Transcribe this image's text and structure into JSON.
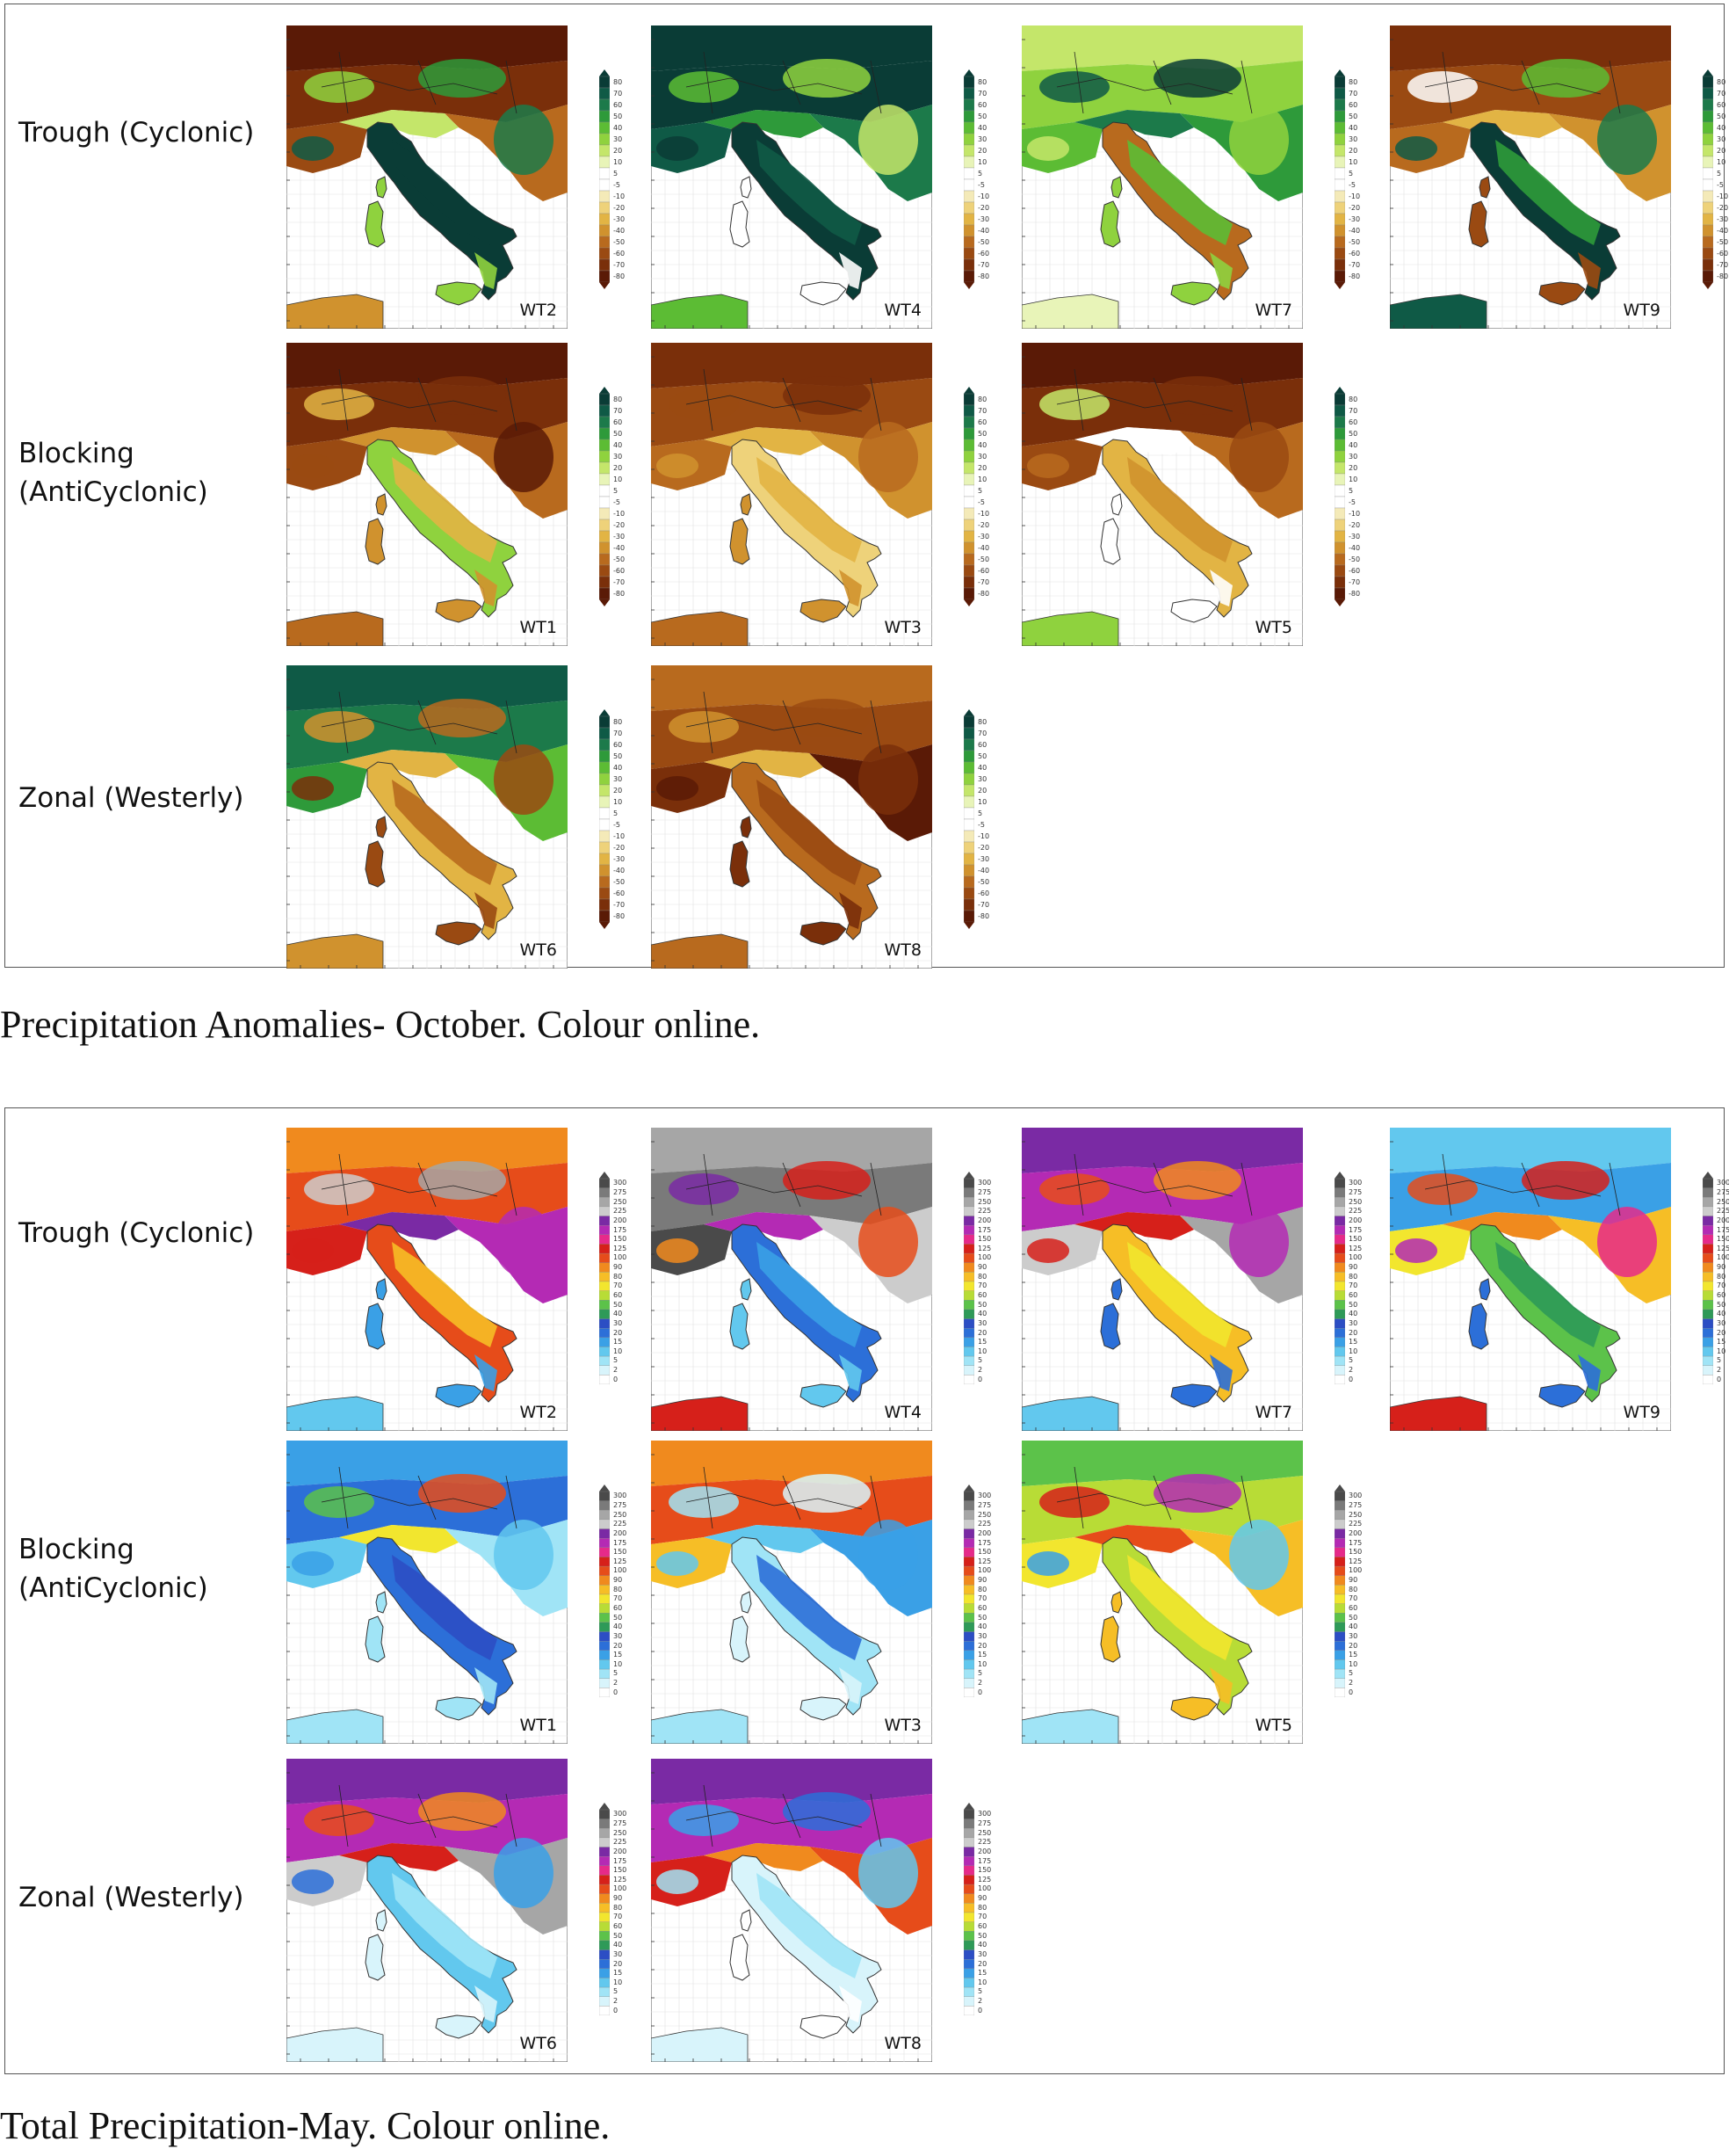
{
  "figures": [
    {
      "id": "anom",
      "caption": "Precipitation Anomalies- October. Colour online.",
      "colors": [
        "#5a1a06",
        "#7a2f0a",
        "#9a4a12",
        "#b86a1e",
        "#d0922e",
        "#e2b444",
        "#eed27a",
        "#f4eab8",
        "#ffffff",
        "#ffffff",
        "#e8f4b8",
        "#c4e66a",
        "#8fd23e",
        "#5cbc34",
        "#2e9a3a",
        "#1c7a4a",
        "#0f5a46",
        "#0a3c36"
      ],
      "ticks": [
        "80",
        "70",
        "60",
        "50",
        "40",
        "30",
        "20",
        "10",
        "5",
        "-5",
        "-10",
        "-20",
        "-30",
        "-40",
        "-50",
        "-60",
        "-70",
        "-80"
      ],
      "rows": [
        {
          "label": "Trough (Cyclonic)",
          "maps": [
            {
              "wt": "WT2",
              "palette": [
                0,
                1,
                2,
                3,
                11,
                12,
                14,
                15,
                16,
                17,
                17,
                12,
                4
              ]
            },
            {
              "wt": "WT4",
              "palette": [
                17,
                17,
                16,
                15,
                14,
                13,
                12,
                11,
                17,
                17,
                16,
                9,
                13
              ]
            },
            {
              "wt": "WT7",
              "palette": [
                11,
                12,
                13,
                14,
                15,
                16,
                17,
                12,
                11,
                3,
                13,
                12,
                10
              ]
            },
            {
              "wt": "WT9",
              "palette": [
                1,
                2,
                3,
                4,
                5,
                9,
                13,
                15,
                16,
                17,
                14,
                2,
                16
              ]
            }
          ]
        },
        {
          "label": "Blocking (AntiCyclonic)",
          "maps": [
            {
              "wt": "WT1",
              "palette": [
                0,
                1,
                2,
                3,
                4,
                5,
                1,
                0,
                2,
                12,
                5,
                4,
                3
              ]
            },
            {
              "wt": "WT3",
              "palette": [
                1,
                2,
                3,
                4,
                5,
                2,
                1,
                3,
                4,
                6,
                5,
                4,
                3
              ]
            },
            {
              "wt": "WT5",
              "palette": [
                0,
                1,
                2,
                3,
                9,
                11,
                1,
                2,
                3,
                5,
                4,
                9,
                12
              ]
            }
          ]
        },
        {
          "label": "Zonal (Westerly)",
          "maps": [
            {
              "wt": "WT6",
              "palette": [
                16,
                15,
                14,
                13,
                5,
                4,
                3,
                2,
                1,
                5,
                3,
                2,
                4
              ]
            },
            {
              "wt": "WT8",
              "palette": [
                3,
                2,
                1,
                0,
                5,
                4,
                2,
                1,
                0,
                3,
                2,
                1,
                3
              ]
            }
          ]
        }
      ]
    },
    {
      "id": "total",
      "caption": "Total Precipitation-May. Colour online.",
      "colors": [
        "#ffffff",
        "#d8f4fb",
        "#a0e4f6",
        "#62c8ee",
        "#3aa0e6",
        "#2c6fd8",
        "#2c4ec4",
        "#2e9a58",
        "#5cc24a",
        "#b8dc36",
        "#f2e62e",
        "#f6be26",
        "#f08a1e",
        "#e64c1a",
        "#d6201a",
        "#e62a8a",
        "#b42ab4",
        "#7a2aa4",
        "#cccccc",
        "#a6a6a6",
        "#7a7a7a",
        "#4a4a4a"
      ],
      "ticks": [
        "300",
        "275",
        "250",
        "225",
        "200",
        "175",
        "150",
        "125",
        "100",
        "90",
        "80",
        "70",
        "60",
        "50",
        "40",
        "30",
        "20",
        "15",
        "10",
        "5",
        "2",
        "0"
      ],
      "rows": [
        {
          "label": "Trough (Cyclonic)",
          "maps": [
            {
              "wt": "WT2",
              "palette": [
                12,
                13,
                14,
                16,
                17,
                18,
                19,
                16,
                14,
                13,
                11,
                4,
                3
              ]
            },
            {
              "wt": "WT4",
              "palette": [
                19,
                20,
                21,
                18,
                16,
                17,
                14,
                13,
                12,
                5,
                4,
                3,
                14
              ]
            },
            {
              "wt": "WT7",
              "palette": [
                17,
                16,
                18,
                19,
                14,
                13,
                12,
                16,
                14,
                11,
                10,
                5,
                3
              ]
            },
            {
              "wt": "WT9",
              "palette": [
                3,
                4,
                10,
                11,
                12,
                13,
                14,
                15,
                16,
                8,
                7,
                5,
                14
              ]
            }
          ]
        },
        {
          "label": "Blocking (AntiCyclonic)",
          "maps": [
            {
              "wt": "WT1",
              "palette": [
                4,
                5,
                3,
                2,
                10,
                8,
                13,
                3,
                4,
                5,
                6,
                2,
                2
              ]
            },
            {
              "wt": "WT3",
              "palette": [
                12,
                13,
                11,
                4,
                3,
                2,
                1,
                4,
                3,
                2,
                5,
                1,
                2
              ]
            },
            {
              "wt": "WT5",
              "palette": [
                8,
                9,
                10,
                11,
                13,
                14,
                16,
                3,
                4,
                9,
                10,
                11,
                2
              ]
            }
          ]
        },
        {
          "label": "Zonal (Westerly)",
          "maps": [
            {
              "wt": "WT6",
              "palette": [
                17,
                16,
                18,
                19,
                14,
                13,
                12,
                4,
                5,
                3,
                2,
                1,
                1
              ]
            },
            {
              "wt": "WT8",
              "palette": [
                17,
                16,
                14,
                13,
                12,
                4,
                5,
                3,
                2,
                1,
                2,
                0,
                1
              ]
            }
          ]
        }
      ]
    }
  ]
}
